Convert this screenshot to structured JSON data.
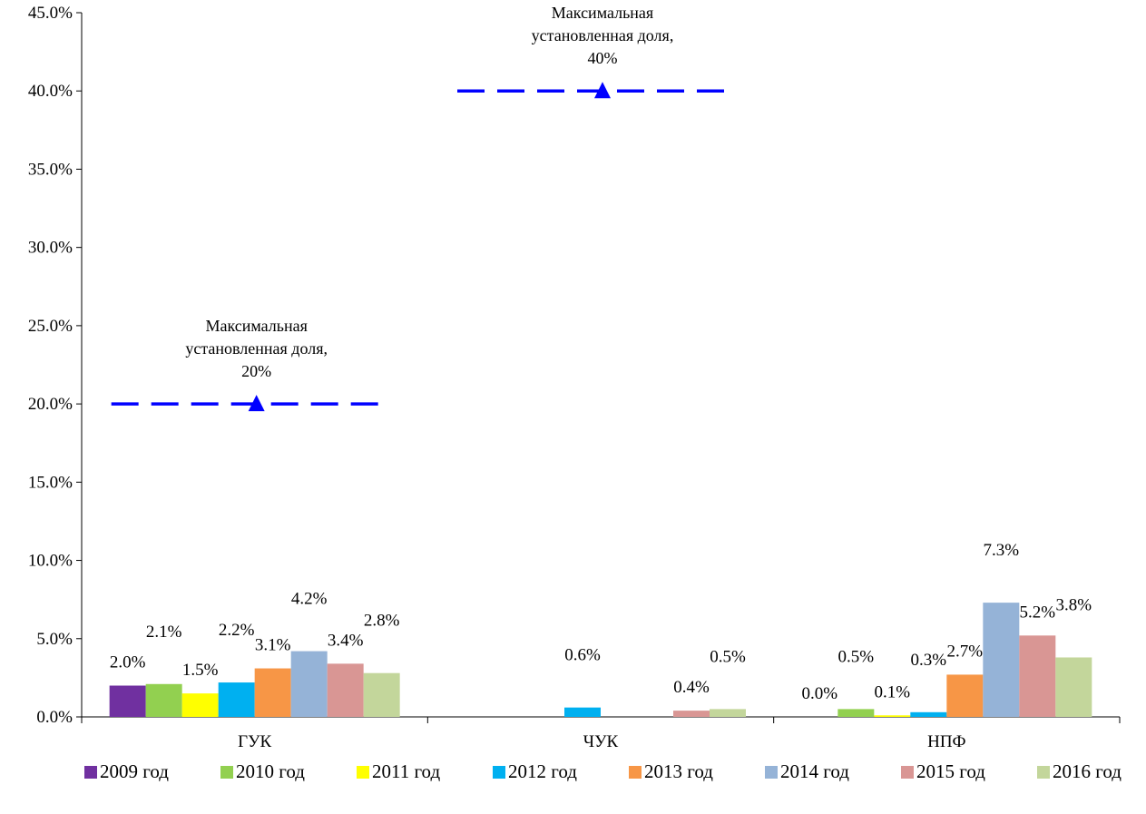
{
  "chart_data": {
    "type": "bar",
    "categories": [
      "ГУК",
      "ЧУК",
      "НПФ"
    ],
    "ylim": [
      0,
      45
    ],
    "y_ticks": [
      0,
      5,
      10,
      15,
      20,
      25,
      30,
      35,
      40,
      45
    ],
    "y_tick_labels": [
      "0.0%",
      "5.0%",
      "10.0%",
      "15.0%",
      "20.0%",
      "25.0%",
      "30.0%",
      "35.0%",
      "40.0%",
      "45.0%"
    ],
    "grid": false,
    "legend_position": "bottom",
    "series": [
      {
        "name": "2009 год",
        "color": "#7030A0",
        "values": [
          2.0,
          null,
          0.0
        ],
        "labels": [
          "2.0%",
          "",
          "0.0%"
        ]
      },
      {
        "name": "2010 год",
        "color": "#92D050",
        "values": [
          2.1,
          null,
          0.5
        ],
        "labels": [
          "2.1%",
          "",
          "0.5%"
        ]
      },
      {
        "name": "2011 год",
        "color": "#FFFF00",
        "values": [
          1.5,
          null,
          0.1
        ],
        "labels": [
          "1.5%",
          "",
          "0.1%"
        ]
      },
      {
        "name": "2012 год",
        "color": "#00B0F0",
        "values": [
          2.2,
          0.6,
          0.3
        ],
        "labels": [
          "2.2%",
          "0.6%",
          "0.3%"
        ]
      },
      {
        "name": "2013 год",
        "color": "#F79646",
        "values": [
          3.1,
          null,
          2.7
        ],
        "labels": [
          "3.1%",
          "",
          "2.7%"
        ]
      },
      {
        "name": "2014 год",
        "color": "#95B3D7",
        "values": [
          4.2,
          null,
          7.3
        ],
        "labels": [
          "4.2%",
          "",
          "7.3%"
        ]
      },
      {
        "name": "2015 год",
        "color": "#D99694",
        "values": [
          3.4,
          0.4,
          5.2
        ],
        "labels": [
          "3.4%",
          "0.4%",
          "5.2%"
        ]
      },
      {
        "name": "2016 год",
        "color": "#C3D69B",
        "values": [
          2.8,
          0.5,
          3.8
        ],
        "labels": [
          "2.8%",
          "0.5%",
          "3.8%"
        ]
      }
    ],
    "limits": [
      {
        "category": "ГУК",
        "value": 20,
        "color": "#0000FF",
        "label_lines": [
          "Максимальная",
          "установленная доля,",
          "20%"
        ]
      },
      {
        "category": "ЧУК",
        "value": 40,
        "color": "#0000FF",
        "label_lines": [
          "Максимальная",
          "установленная доля,",
          "40%"
        ]
      }
    ]
  }
}
